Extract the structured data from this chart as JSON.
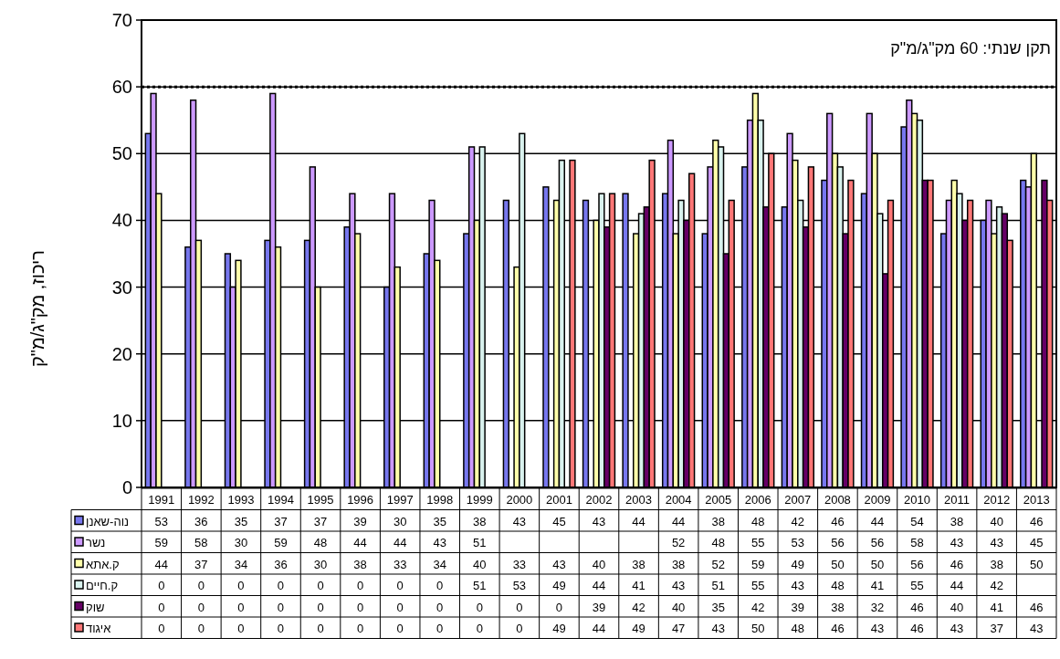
{
  "chart_data": {
    "type": "bar",
    "ylabel": "ריכוז, מק\"ג/מ\"ק",
    "categories": [
      "1991",
      "1992",
      "1993",
      "1994",
      "1995",
      "1996",
      "1997",
      "1998",
      "1999",
      "2000",
      "2001",
      "2002",
      "2003",
      "2004",
      "2005",
      "2006",
      "2007",
      "2008",
      "2009",
      "2010",
      "2011",
      "2012",
      "2013"
    ],
    "series": [
      {
        "name": "נוה-שאנן",
        "color": "#7777ee",
        "values": [
          53,
          36,
          35,
          37,
          37,
          39,
          30,
          35,
          38,
          43,
          45,
          43,
          44,
          44,
          38,
          48,
          42,
          46,
          44,
          54,
          38,
          40,
          46
        ]
      },
      {
        "name": "נשר",
        "color": "#cc99ff",
        "values": [
          59,
          58,
          30,
          59,
          48,
          44,
          44,
          43,
          51,
          null,
          null,
          null,
          null,
          52,
          48,
          55,
          53,
          56,
          56,
          58,
          43,
          43,
          45
        ]
      },
      {
        "name": "ק.אתא",
        "color": "#ffffaa",
        "values": [
          44,
          37,
          34,
          36,
          30,
          38,
          33,
          34,
          40,
          33,
          43,
          40,
          38,
          38,
          52,
          59,
          49,
          50,
          50,
          56,
          46,
          38,
          50
        ]
      },
      {
        "name": "ק.חיים",
        "color": "#d9f2ee",
        "values": [
          0,
          0,
          0,
          0,
          0,
          0,
          0,
          0,
          51,
          53,
          49,
          44,
          41,
          43,
          51,
          55,
          43,
          48,
          41,
          55,
          44,
          42,
          null
        ]
      },
      {
        "name": "שוק",
        "color": "#660066",
        "values": [
          0,
          0,
          0,
          0,
          0,
          0,
          0,
          0,
          0,
          0,
          0,
          39,
          42,
          40,
          35,
          42,
          39,
          38,
          32,
          46,
          40,
          41,
          46
        ]
      },
      {
        "name": "איגוד",
        "color": "#ff7777",
        "values": [
          0,
          0,
          0,
          0,
          0,
          0,
          0,
          0,
          0,
          0,
          49,
          44,
          49,
          47,
          43,
          50,
          48,
          46,
          43,
          46,
          43,
          37,
          43
        ]
      }
    ],
    "ylim": [
      0,
      70
    ],
    "yticks": [
      0,
      10,
      20,
      30,
      40,
      50,
      60,
      70
    ],
    "grid": "y",
    "legend": "bottom left",
    "data_labels": true,
    "ref_lines": [
      {
        "axis": "y",
        "value": 60,
        "label": "תקן שנתי: 60 מק\"ג/מ\"ק",
        "color": "#000000",
        "line_style": "dotted"
      }
    ]
  }
}
